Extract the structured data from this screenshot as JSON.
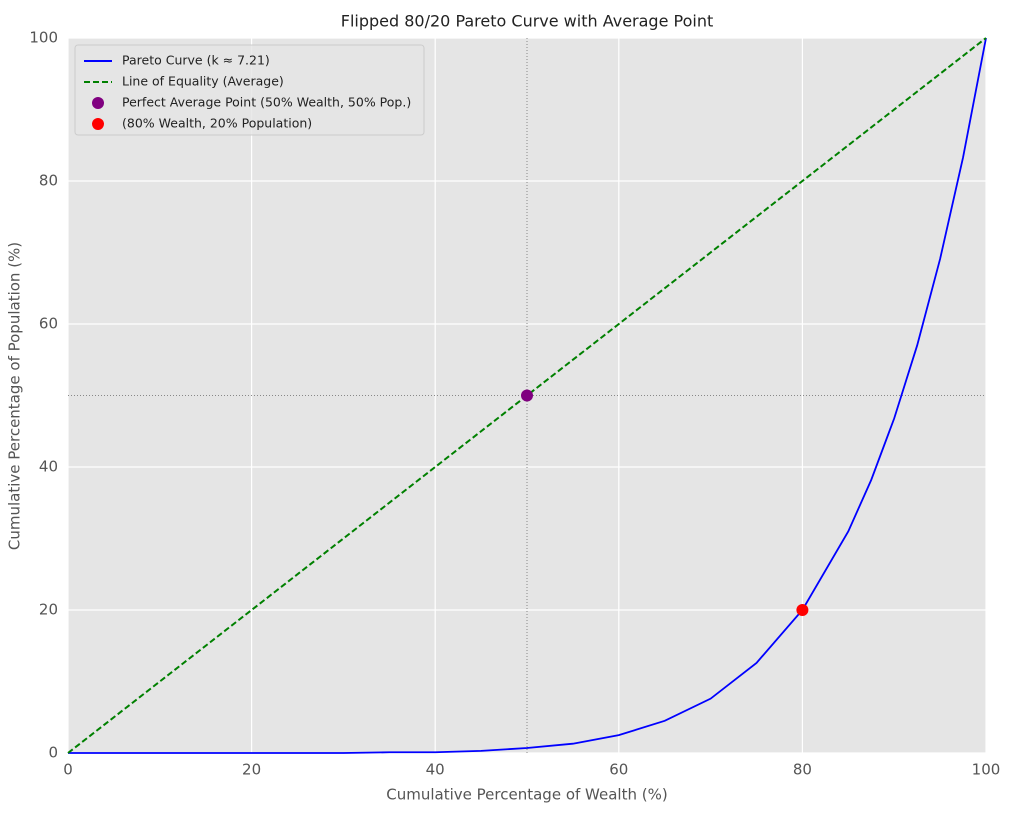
{
  "chart_data": {
    "type": "line",
    "title": "Flipped 80/20 Pareto Curve with Average Point",
    "xlabel": "Cumulative Percentage of Wealth (%)",
    "ylabel": "Cumulative Percentage of Population (%)",
    "xlim": [
      0,
      100
    ],
    "ylim": [
      0,
      100
    ],
    "xticks": [
      0,
      20,
      40,
      60,
      80,
      100
    ],
    "yticks": [
      0,
      20,
      40,
      60,
      80,
      100
    ],
    "grid": true,
    "legend": "upper left",
    "vlines": [
      50
    ],
    "hlines": [
      50
    ],
    "series": [
      {
        "name": "Pareto Curve (k ≈ 7.21)",
        "color": "#0000ff",
        "style": "solid",
        "x": [
          0,
          5,
          10,
          15,
          20,
          25,
          30,
          35,
          40,
          45,
          50,
          55,
          60,
          65,
          70,
          75,
          80,
          85,
          87.5,
          90,
          92.5,
          95,
          97.5,
          100
        ],
        "values": [
          0,
          0,
          0,
          0,
          0,
          0,
          0,
          0.1,
          0.1,
          0.3,
          0.7,
          1.3,
          2.5,
          4.5,
          7.6,
          12.6,
          20,
          31,
          38.2,
          46.8,
          57,
          69.1,
          83.3,
          100
        ]
      },
      {
        "name": "Line of Equality (Average)",
        "color": "#008000",
        "style": "dashed",
        "x": [
          0,
          100
        ],
        "values": [
          0,
          100
        ]
      },
      {
        "name": "Perfect Average Point (50% Wealth, 50% Pop.)",
        "color": "#800080",
        "style": "marker",
        "x": [
          50
        ],
        "values": [
          50
        ]
      },
      {
        "name": "(80% Wealth, 20% Population)",
        "color": "#ff0000",
        "style": "marker",
        "x": [
          80
        ],
        "values": [
          20
        ]
      }
    ]
  }
}
